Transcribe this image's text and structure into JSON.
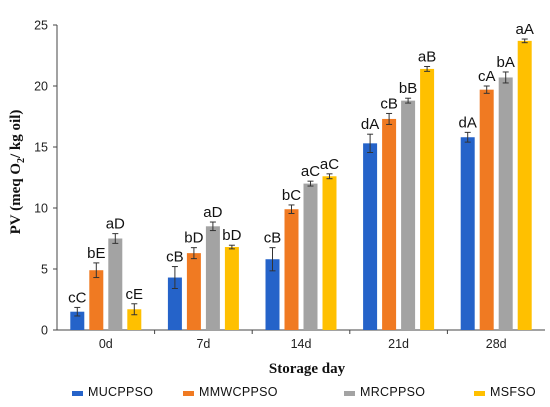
{
  "chart_data": {
    "type": "bar",
    "xlabel": "Storage day",
    "ylabel_main": "PV (meq O",
    "ylabel_sub": "2",
    "ylabel_tail": "/ kg oil)",
    "ylim": [
      0,
      25
    ],
    "yticks": [
      0,
      5,
      10,
      15,
      20,
      25
    ],
    "grid": false,
    "legend_position": "bottom",
    "categories": [
      "0d",
      "7d",
      "14d",
      "21d",
      "28d"
    ],
    "series": [
      {
        "name": "MUCPPSO",
        "color": "#2563c9",
        "values": [
          1.5,
          4.3,
          5.8,
          15.3,
          15.8
        ],
        "errors": [
          0.35,
          0.9,
          0.95,
          0.75,
          0.4
        ],
        "labels": [
          "cC",
          "cB",
          "cB",
          "dA",
          "dA"
        ]
      },
      {
        "name": "MMWCPPSO",
        "color": "#f07a22",
        "values": [
          4.9,
          6.3,
          9.9,
          17.3,
          19.7
        ],
        "errors": [
          0.6,
          0.45,
          0.35,
          0.45,
          0.3
        ],
        "labels": [
          "bE",
          "bD",
          "bC",
          "cB",
          "cA"
        ]
      },
      {
        "name": "MRCPPSO",
        "color": "#a3a3a3",
        "values": [
          7.5,
          8.5,
          12.0,
          18.8,
          20.7
        ],
        "errors": [
          0.4,
          0.35,
          0.2,
          0.2,
          0.45
        ],
        "labels": [
          "aD",
          "aD",
          "aC",
          "bB",
          "bA"
        ]
      },
      {
        "name": "MSFSO",
        "color": "#ffc000",
        "values": [
          1.7,
          6.8,
          12.6,
          21.4,
          23.7
        ],
        "errors": [
          0.45,
          0.15,
          0.2,
          0.2,
          0.15
        ],
        "labels": [
          "cE",
          "bD",
          "aC",
          "aB",
          "aA"
        ]
      }
    ]
  }
}
